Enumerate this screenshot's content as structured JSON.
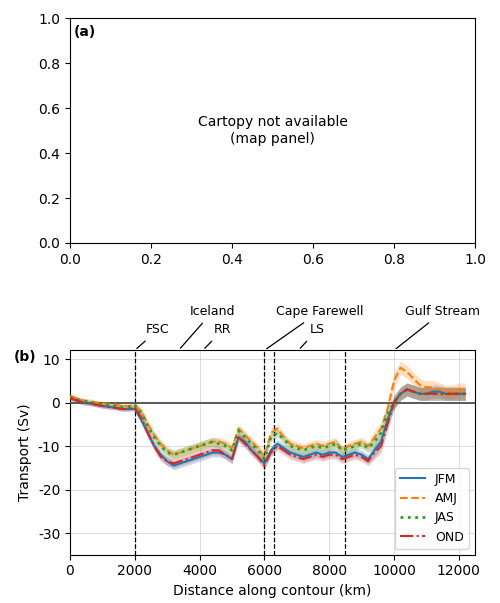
{
  "chart_data": [
    {
      "type": "placeholder",
      "annotations": [
        {
          "text": "(a)"
        },
        {
          "text": "Cartopy not available\n(map panel)"
        }
      ],
      "xlim": [
        0,
        1
      ],
      "ylim": [
        0,
        1
      ],
      "xticks": [
        {
          "value": 0,
          "label": "0.0"
        },
        {
          "value": 0.2,
          "label": "0.2"
        },
        {
          "value": 0.4,
          "label": "0.4"
        },
        {
          "value": 0.6,
          "label": "0.6"
        },
        {
          "value": 0.8,
          "label": "0.8"
        },
        {
          "value": 1,
          "label": "1.0"
        }
      ],
      "yticks": [
        {
          "value": 0,
          "label": "0.0"
        },
        {
          "value": 0.2,
          "label": "0.2"
        },
        {
          "value": 0.4,
          "label": "0.4"
        },
        {
          "value": 0.6,
          "label": "0.6"
        },
        {
          "value": 0.8,
          "label": "0.8"
        },
        {
          "value": 1,
          "label": "1.0"
        }
      ]
    },
    {
      "type": "line",
      "x_label": "Distance along contour (km)",
      "y_label": "Transport (Sv)",
      "x": [
        0,
        200,
        400,
        600,
        800,
        1000,
        1200,
        1400,
        1600,
        1800,
        2000,
        2200,
        2400,
        2600,
        2800,
        3000,
        3200,
        3400,
        3600,
        3800,
        4000,
        4200,
        4400,
        4600,
        4800,
        5000,
        5200,
        5400,
        5600,
        5800,
        6000,
        6200,
        6400,
        6600,
        6800,
        7000,
        7200,
        7400,
        7600,
        7800,
        8000,
        8200,
        8400,
        8600,
        8800,
        9000,
        9200,
        9400,
        9600,
        9800,
        10000,
        10200,
        10400,
        10600,
        10800,
        11000,
        11200,
        11400,
        11600,
        11800,
        12000,
        12200
      ],
      "series": [
        {
          "name": "JFM",
          "line_style": "solid",
          "values": [
            1,
            0.5,
            0,
            -0.2,
            -0.5,
            -0.8,
            -1.0,
            -1.2,
            -1.5,
            -1.5,
            -1.5,
            -4,
            -7,
            -10,
            -12,
            -13.5,
            -14.5,
            -14,
            -13.5,
            -13,
            -12.5,
            -12,
            -11.5,
            -11.5,
            -12,
            -13,
            -8,
            -9,
            -11,
            -12.5,
            -14,
            -11,
            -9.5,
            -10.5,
            -11.5,
            -12,
            -12.5,
            -12,
            -11.5,
            -12,
            -11.5,
            -11.5,
            -12.5,
            -12,
            -11.5,
            -12,
            -13,
            -11,
            -9,
            -4,
            0,
            2,
            3,
            2.5,
            2,
            2,
            2.5,
            2.5,
            2,
            2,
            2,
            2
          ],
          "upper": [
            1.5,
            1,
            0.5,
            0.3,
            0,
            -0.3,
            -0.5,
            -0.7,
            -1,
            -1,
            -1,
            -3,
            -6,
            -9,
            -11,
            -12.5,
            -13.5,
            -13,
            -12.5,
            -12,
            -11.5,
            -11,
            -10.5,
            -10.5,
            -11,
            -12,
            -7,
            -8,
            -10,
            -11.5,
            -13,
            -10,
            -8.5,
            -9.5,
            -10.5,
            -11,
            -11.5,
            -11,
            -10.5,
            -11,
            -10.5,
            -10.5,
            -11.5,
            -11,
            -10.5,
            -11,
            -12,
            -9.5,
            -7.5,
            -2.5,
            1.5,
            3.5,
            4.5,
            4,
            3.5,
            3.5,
            4,
            4,
            3.5,
            3.5,
            3.5,
            3.5
          ],
          "lower": [
            0.5,
            0,
            -0.5,
            -0.7,
            -1,
            -1.3,
            -1.5,
            -1.7,
            -2,
            -2,
            -2,
            -5,
            -8,
            -11,
            -13,
            -14.5,
            -15.5,
            -15,
            -14.5,
            -14,
            -13.5,
            -13,
            -12.5,
            -12.5,
            -13,
            -14,
            -9,
            -10,
            -12,
            -13.5,
            -15,
            -12,
            -10.5,
            -11.5,
            -12.5,
            -13,
            -13.5,
            -13,
            -12.5,
            -13,
            -12.5,
            -12.5,
            -13.5,
            -13,
            -12.5,
            -13,
            -14,
            -12.5,
            -10.5,
            -5.5,
            -1.5,
            0.5,
            1.5,
            1,
            0.5,
            0.5,
            1,
            1,
            0.5,
            0.5,
            0.5,
            0.5
          ]
        },
        {
          "name": "AMJ",
          "line_style": "dashed",
          "values": [
            1.5,
            1,
            0.5,
            0.3,
            0,
            -0.2,
            -0.3,
            -0.5,
            -0.8,
            -0.8,
            -0.8,
            -2,
            -5,
            -7.5,
            -9.5,
            -11,
            -12,
            -11.5,
            -11,
            -10.5,
            -10,
            -9.5,
            -9,
            -9,
            -9.5,
            -10.5,
            -6,
            -7.5,
            -9,
            -10.5,
            -12.5,
            -7,
            -6,
            -8,
            -9.5,
            -10,
            -10.5,
            -10,
            -9.5,
            -10,
            -9.5,
            -9,
            -11,
            -10,
            -9.5,
            -9,
            -10,
            -8,
            -6,
            -1.5,
            5,
            8,
            7,
            5.5,
            4,
            3.5,
            3.5,
            3,
            2.5,
            2.5,
            3,
            3
          ],
          "upper": [
            2,
            1.5,
            1,
            0.8,
            0.5,
            0.3,
            0.2,
            0,
            -0.3,
            -0.3,
            -0.3,
            -1,
            -4,
            -6.5,
            -8.5,
            -10,
            -11,
            -10.5,
            -10,
            -9.5,
            -9,
            -8.5,
            -8,
            -8,
            -8.5,
            -9.5,
            -5,
            -6.5,
            -8,
            -9.5,
            -11.5,
            -6,
            -5,
            -7,
            -8.5,
            -9,
            -9.5,
            -9,
            -8.5,
            -9,
            -8.5,
            -8,
            -10,
            -9,
            -8.5,
            -8,
            -9,
            -6.5,
            -4.5,
            0,
            7,
            9.5,
            8.5,
            7,
            5.5,
            5,
            5,
            4.5,
            4,
            4,
            4.5,
            4.5
          ],
          "lower": [
            1,
            0.5,
            0,
            -0.2,
            -0.5,
            -0.7,
            -0.8,
            -1,
            -1.3,
            -1.3,
            -1.3,
            -3,
            -6,
            -8.5,
            -10.5,
            -12,
            -13,
            -12.5,
            -12,
            -11.5,
            -11,
            -10.5,
            -10,
            -10,
            -10.5,
            -11.5,
            -7,
            -8.5,
            -10,
            -11.5,
            -13.5,
            -8,
            -7,
            -9,
            -10.5,
            -11,
            -11.5,
            -11,
            -10.5,
            -11,
            -10.5,
            -10,
            -12,
            -11,
            -10.5,
            -10,
            -11,
            -9.5,
            -7.5,
            -3,
            3,
            6.5,
            5.5,
            4,
            2.5,
            2,
            2,
            1.5,
            1,
            1,
            1.5,
            1.5
          ]
        },
        {
          "name": "JAS",
          "line_style": "dotted",
          "values": [
            1.2,
            0.8,
            0.3,
            0.1,
            -0.2,
            -0.4,
            -0.5,
            -0.8,
            -1,
            -1,
            -0.5,
            -2.5,
            -5.5,
            -8,
            -10,
            -11.5,
            -12,
            -11.5,
            -11,
            -10.5,
            -10,
            -9.5,
            -9,
            -9.5,
            -10,
            -11,
            -6.5,
            -8,
            -9.5,
            -11,
            -13,
            -8,
            -7,
            -8.5,
            -10,
            -10.5,
            -11,
            -10.5,
            -10,
            -10.5,
            -10,
            -9.5,
            -11,
            -10.5,
            -10,
            -9.5,
            -10.5,
            -9,
            -7,
            -2.5,
            0,
            2,
            3,
            2.5,
            2,
            2,
            2,
            2,
            2,
            2,
            2,
            2
          ],
          "upper": [
            1.7,
            1.3,
            0.8,
            0.6,
            0.3,
            0.1,
            0,
            -0.3,
            -0.5,
            -0.5,
            0,
            -1.5,
            -4.5,
            -7,
            -9,
            -10.5,
            -11,
            -10.5,
            -10,
            -9.5,
            -9,
            -8.5,
            -8,
            -8.5,
            -9,
            -10,
            -5.5,
            -7,
            -8.5,
            -10,
            -12,
            -7,
            -6,
            -7.5,
            -9,
            -9.5,
            -10,
            -9.5,
            -9,
            -9.5,
            -9,
            -8.5,
            -10,
            -9.5,
            -9,
            -8.5,
            -9.5,
            -7.5,
            -5.5,
            -1,
            1.5,
            3.5,
            4.5,
            4,
            3.5,
            3.5,
            3.5,
            3.5,
            3.5,
            3.5,
            3.5,
            3.5
          ],
          "lower": [
            0.7,
            0.3,
            -0.2,
            -0.4,
            -0.7,
            -0.9,
            -1,
            -1.3,
            -1.5,
            -1.5,
            -1,
            -3.5,
            -6.5,
            -9,
            -11,
            -12.5,
            -13,
            -12.5,
            -12,
            -11.5,
            -11,
            -10.5,
            -10,
            -10.5,
            -11,
            -12,
            -7.5,
            -9,
            -10.5,
            -12,
            -14,
            -9,
            -8,
            -9.5,
            -11,
            -11.5,
            -12,
            -11.5,
            -11,
            -11.5,
            -11,
            -10.5,
            -12,
            -11.5,
            -11,
            -10.5,
            -11.5,
            -10.5,
            -8.5,
            -4,
            -1.5,
            0.5,
            1.5,
            1,
            0.5,
            0.5,
            0.5,
            0.5,
            0.5,
            0.5,
            0.5,
            0.5
          ]
        },
        {
          "name": "OND",
          "line_style": "dashdot",
          "values": [
            1,
            0.5,
            0,
            -0.2,
            -0.5,
            -0.8,
            -1,
            -1.2,
            -1.5,
            -1.5,
            -1.2,
            -3.5,
            -7,
            -10,
            -12.5,
            -13.5,
            -14,
            -13.5,
            -13,
            -12.5,
            -12,
            -11.5,
            -11,
            -11,
            -12,
            -13,
            -8,
            -9.5,
            -11,
            -12.5,
            -14.5,
            -11.5,
            -10,
            -11,
            -12,
            -12.5,
            -13,
            -12.5,
            -12,
            -12.5,
            -12,
            -12,
            -13,
            -12.5,
            -12,
            -12.5,
            -13.5,
            -11.5,
            -10,
            -5,
            0,
            2,
            3,
            2.5,
            2,
            2,
            2,
            2,
            2,
            2,
            2,
            2
          ],
          "upper": [
            1.5,
            1,
            0.5,
            0.3,
            0,
            -0.3,
            -0.5,
            -0.7,
            -1,
            -1,
            -0.7,
            -2.5,
            -6,
            -9,
            -11.5,
            -12.5,
            -13,
            -12.5,
            -12,
            -11.5,
            -11,
            -10.5,
            -10,
            -10,
            -11,
            -12,
            -7,
            -8.5,
            -10,
            -11.5,
            -13.5,
            -10.5,
            -9,
            -10,
            -11,
            -11.5,
            -12,
            -11.5,
            -11,
            -11.5,
            -11,
            -11,
            -12,
            -11.5,
            -11,
            -11.5,
            -12.5,
            -10,
            -8.5,
            -3.5,
            1.5,
            3.5,
            4.5,
            4,
            3.5,
            3.5,
            3.5,
            3.5,
            3.5,
            3.5,
            3.5,
            3.5
          ],
          "lower": [
            0.5,
            0,
            -0.5,
            -0.7,
            -1,
            -1.3,
            -1.5,
            -1.7,
            -2,
            -2,
            -1.7,
            -4.5,
            -8,
            -11,
            -13.5,
            -14.5,
            -15,
            -14.5,
            -14,
            -13.5,
            -13,
            -12.5,
            -12,
            -12,
            -13,
            -14,
            -9,
            -10.5,
            -12,
            -13.5,
            -15.5,
            -12.5,
            -11,
            -12,
            -13,
            -13.5,
            -14,
            -13.5,
            -13,
            -13.5,
            -13,
            -13,
            -14,
            -13.5,
            -13,
            -13.5,
            -14.5,
            -13,
            -11.5,
            -6.5,
            -1.5,
            0.5,
            1.5,
            1,
            0.5,
            0.5,
            0.5,
            0.5,
            0.5,
            0.5,
            0.5,
            0.5
          ]
        }
      ],
      "hlines": [
        0
      ],
      "vlines": [
        2000,
        6000,
        6300,
        8500
      ],
      "annotations": [
        {
          "text": "(b)"
        },
        {
          "text": "FSC",
          "x": 2000
        },
        {
          "text": "Iceland",
          "x": 3350
        },
        {
          "text": "RR",
          "x": 4100
        },
        {
          "text": "Cape Farewell",
          "x": 6000
        },
        {
          "text": "LS",
          "x": 7050
        },
        {
          "text": "Gulf Stream",
          "x": 10000
        }
      ],
      "xlim": [
        0,
        12500
      ],
      "ylim": [
        -35,
        12
      ],
      "xticks": [
        0,
        2000,
        4000,
        6000,
        8000,
        10000,
        12000
      ],
      "yticks": [
        -30,
        -20,
        -10,
        0,
        10
      ],
      "grid": true,
      "legend": "lower right"
    }
  ]
}
